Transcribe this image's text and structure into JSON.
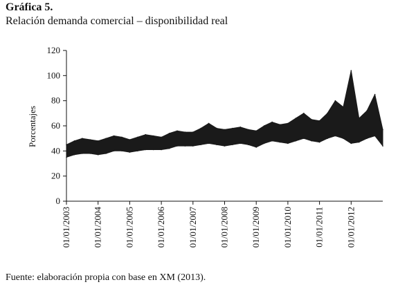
{
  "figure": {
    "label": "Gráfica 5.",
    "title": "Relación demanda comercial – disponibilidad real",
    "source": "Fuente: elaboración propia con base en XM (2013)."
  },
  "chart_data": {
    "type": "area",
    "title": "Relación demanda comercial – disponibilidad real",
    "ylabel": "Porcentajes",
    "xlabel": "",
    "ylim": [
      0,
      120
    ],
    "yticks": [
      0,
      20,
      40,
      60,
      80,
      100,
      120
    ],
    "x_tick_labels": [
      "01/01/2003",
      "01/01/2004",
      "01/01/2005",
      "01/01/2006",
      "01/01/2007",
      "01/01/2008",
      "01/01/2009",
      "01/01/2010",
      "01/01/2011",
      "01/01/2012"
    ],
    "x_range": [
      2003.0,
      2013.0
    ],
    "grid": false,
    "legend": "none",
    "fill_color": "#1a1a1a",
    "series": [
      {
        "x": [
          2003.0,
          2003.25,
          2003.5,
          2003.75,
          2004.0,
          2004.25,
          2004.5,
          2004.75,
          2005.0,
          2005.25,
          2005.5,
          2005.75,
          2006.0,
          2006.25,
          2006.5,
          2006.75,
          2007.0,
          2007.25,
          2007.5,
          2007.75,
          2008.0,
          2008.25,
          2008.5,
          2008.75,
          2009.0,
          2009.25,
          2009.5,
          2009.75,
          2010.0,
          2010.25,
          2010.5,
          2010.75,
          2011.0,
          2011.25,
          2011.5,
          2011.75,
          2012.0,
          2012.25,
          2012.5,
          2012.75,
          2013.0
        ],
        "upper": [
          45,
          48,
          50,
          49,
          48,
          50,
          52,
          51,
          49,
          51,
          53,
          52,
          51,
          54,
          56,
          55,
          55,
          58,
          62,
          58,
          57,
          58,
          59,
          57,
          56,
          60,
          63,
          61,
          62,
          66,
          70,
          65,
          64,
          70,
          80,
          75,
          104,
          66,
          72,
          85,
          57
        ],
        "lower": [
          35,
          37,
          38,
          38,
          37,
          38,
          40,
          40,
          39,
          40,
          41,
          41,
          41,
          42,
          44,
          44,
          44,
          45,
          46,
          45,
          44,
          45,
          46,
          45,
          43,
          46,
          48,
          47,
          46,
          48,
          50,
          48,
          47,
          50,
          52,
          50,
          46,
          47,
          50,
          52,
          44
        ]
      }
    ]
  }
}
